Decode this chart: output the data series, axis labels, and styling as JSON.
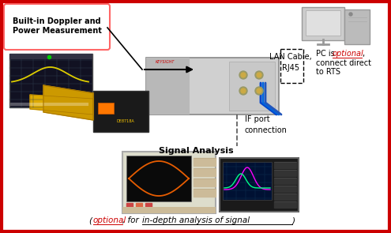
{
  "background_color": "#ffffff",
  "border_color": "#cc0000",
  "border_linewidth": 3,
  "box_label_line1": "Built-in Doppler and",
  "box_label_line2": "Power Measurement",
  "box_edge_color": "#ff6666",
  "lan_label": "LAN Cable,\nRJ45",
  "pc_label_plain": "PC is ",
  "pc_label_optional": "optional",
  "pc_label_end": ",\nconnect direct\nto RTS",
  "if_label": "IF port\nconnection",
  "signal_label": "Signal Analysis",
  "signal_sub_optional": "optional",
  "signal_sub_mid": ", for ",
  "signal_sub_underline": "in-depth analysis of signal",
  "arrow_color": "#000000",
  "dashed_color": "#555555"
}
